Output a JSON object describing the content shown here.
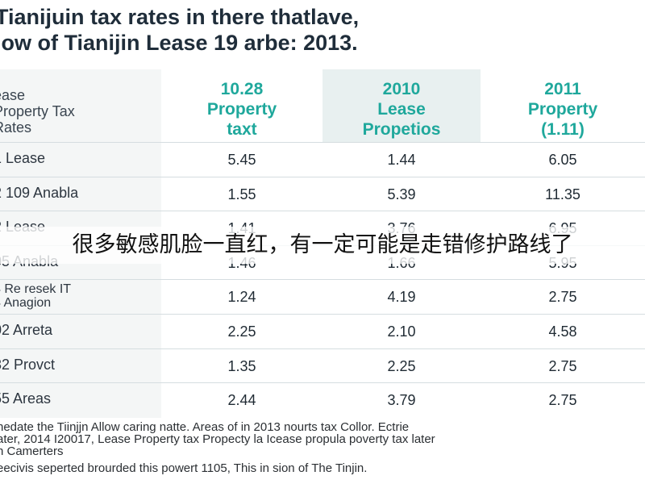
{
  "title": {
    "line1": "Tianijuin tax rates in there thatlave,",
    "line2": "low of Tianijin Lease 19 arbe: 2013."
  },
  "chart_data": {
    "type": "table",
    "row_header": "ease\nProperty Tax\nRates",
    "columns": [
      "10.28\nProperty\ntaxt",
      "2010\nLease\nPropetios",
      "2011\nProperty\n(1.11)"
    ],
    "rows": [
      {
        "label": "1 Lease",
        "values": [
          "5.45",
          "1.44",
          "6.05"
        ]
      },
      {
        "label": "2 109 Anabla",
        "values": [
          "1.55",
          "5.39",
          "11.35"
        ]
      },
      {
        "label": "2 Lease",
        "values": [
          "1.41",
          "3.76",
          "6.95"
        ]
      },
      {
        "label": "05 Anabla",
        "values": [
          "1.46",
          "1.66",
          "5.95"
        ]
      },
      {
        "label": "4 Re resek IT\n4 Anagion",
        "values": [
          "1.24",
          "4.19",
          "2.75"
        ]
      },
      {
        "label": "02 Arreta",
        "values": [
          "2.25",
          "2.10",
          "4.58"
        ]
      },
      {
        "label": "32 Provct",
        "values": [
          "1.35",
          "2.25",
          "2.75"
        ]
      },
      {
        "label": "55 Areas",
        "values": [
          "2.44",
          "3.79",
          "2.75"
        ]
      }
    ]
  },
  "footnote": [
    "hedate the Tiinjjn Allow caring natte. Areas of in 2013 nourts tax Collor. Ectrie",
    "ater, 2014 I20017, Lease Property tax Propecty la Icease propula poverty tax later",
    "n Camerters",
    "eecivis seperted brourded this powert 1105, This in sion of The Tinjin."
  ],
  "overlay_caption": "很多敏感肌脸一直红，有一定可能是走错修护路线了",
  "colors": {
    "header_accent": "#1fa89c",
    "title": "#1f2d3a",
    "label_bg": "#f4f6f6",
    "mid_col_bg": "#e8f0f0"
  }
}
